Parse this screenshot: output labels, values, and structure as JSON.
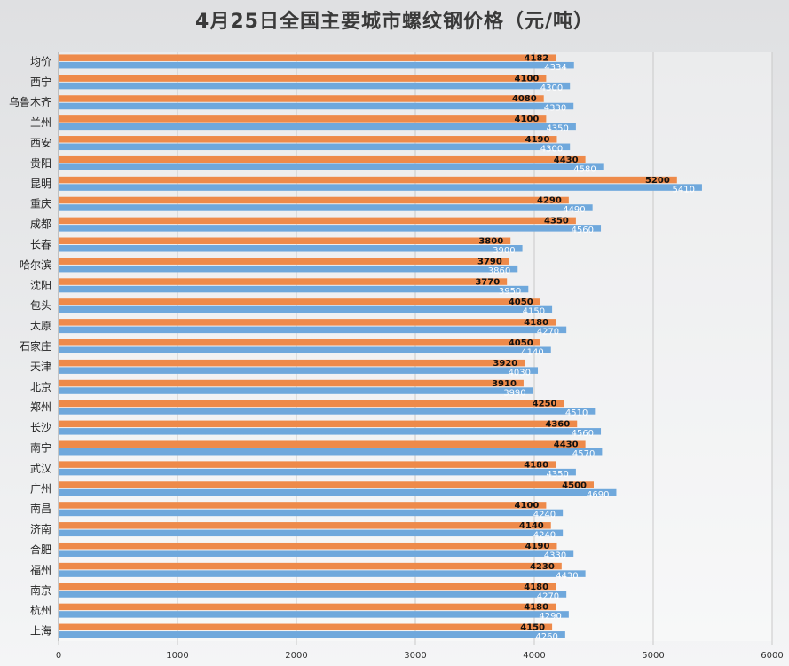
{
  "chart_data": {
    "type": "bar",
    "orientation": "horizontal",
    "title": "4月25日全国主要城市螺纹钢价格（元/吨）",
    "categories": [
      "均价",
      "西宁",
      "乌鲁木齐",
      "兰州",
      "西安",
      "贵阳",
      "昆明",
      "重庆",
      "成都",
      "长春",
      "哈尔滨",
      "沈阳",
      "包头",
      "太原",
      "石家庄",
      "天津",
      "北京",
      "郑州",
      "长沙",
      "南宁",
      "武汉",
      "广州",
      "南昌",
      "济南",
      "合肥",
      "福州",
      "南京",
      "杭州",
      "上海"
    ],
    "series": [
      {
        "color": "#ee8a4a",
        "values": [
          4182,
          4100,
          4080,
          4100,
          4190,
          4430,
          5200,
          4290,
          4350,
          3800,
          3790,
          3770,
          4050,
          4180,
          4050,
          3920,
          3910,
          4250,
          4360,
          4430,
          4180,
          4500,
          4100,
          4140,
          4190,
          4230,
          4180,
          4180,
          4150
        ]
      },
      {
        "color": "#6fa8dc",
        "values": [
          4334,
          4300,
          4330,
          4350,
          4300,
          4580,
          5410,
          4490,
          4560,
          3900,
          3860,
          3950,
          4150,
          4270,
          4140,
          4030,
          3990,
          4510,
          4560,
          4570,
          4350,
          4690,
          4240,
          4240,
          4330,
          4430,
          4270,
          4290,
          4260
        ]
      }
    ],
    "xlim": [
      0,
      6000
    ],
    "xticks": [
      0,
      1000,
      2000,
      3000,
      4000,
      5000,
      6000
    ],
    "grid": "vertical"
  }
}
